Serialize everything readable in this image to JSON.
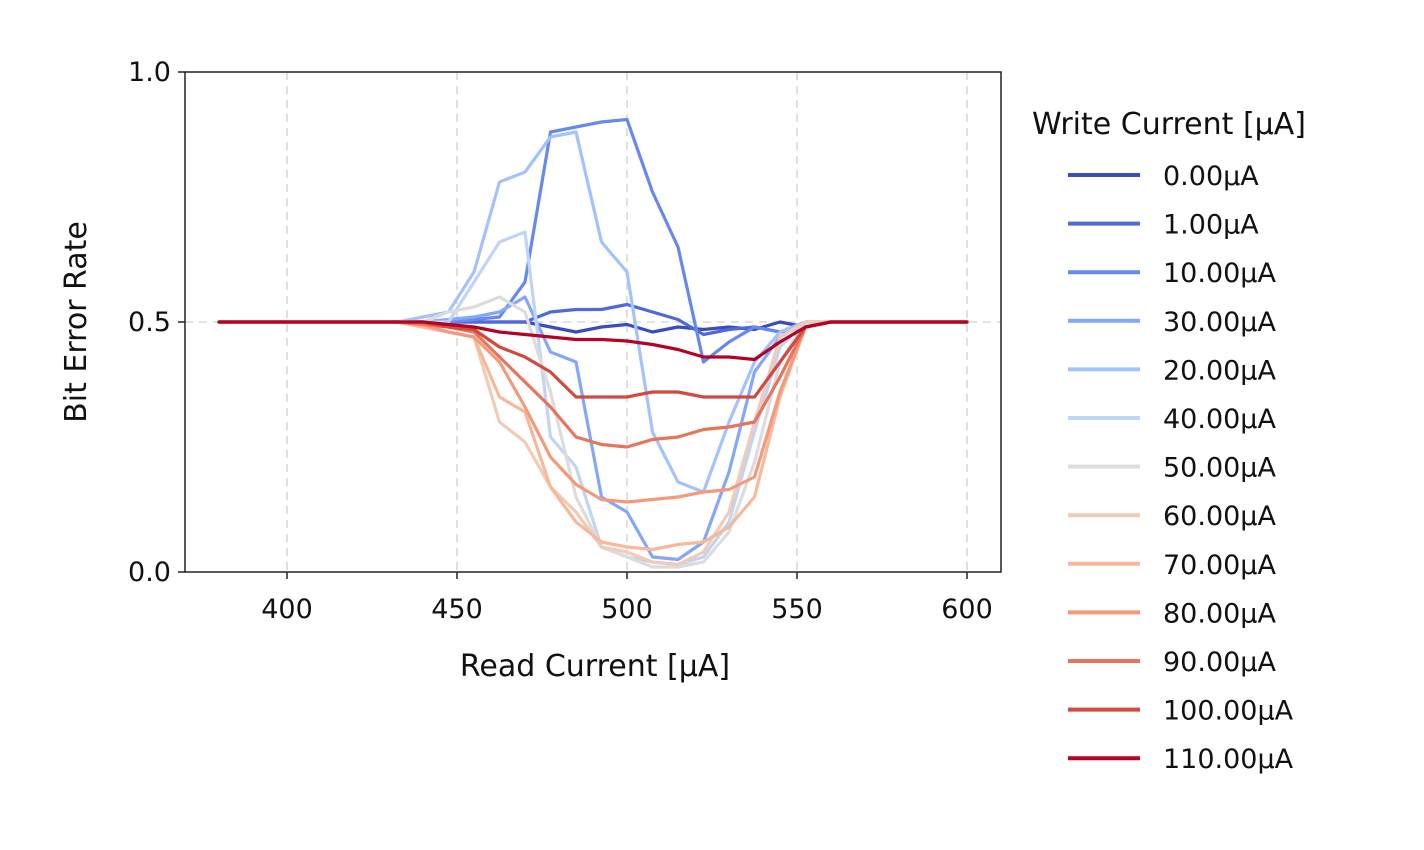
{
  "chart_data": {
    "type": "line",
    "xlabel": "Read Current [μA]",
    "ylabel": "Bit Error Rate",
    "xlim": [
      370,
      610
    ],
    "ylim": [
      0.0,
      1.0
    ],
    "xticks": [
      400,
      450,
      500,
      550,
      600
    ],
    "xtick_labels": [
      "400",
      "450",
      "500",
      "550",
      "600"
    ],
    "yticks": [
      0.0,
      0.5,
      1.0
    ],
    "ytick_labels": [
      "0.0",
      "0.5",
      "1.0"
    ],
    "grid": "dashed",
    "legend_title": "Write Current [μA]",
    "legend_position": "outside-right",
    "x": [
      380,
      387.5,
      395,
      402.5,
      410,
      417.5,
      425,
      432.5,
      440,
      447.5,
      455,
      462.5,
      470,
      477.5,
      485,
      492.5,
      500,
      507.5,
      515,
      522.5,
      530,
      537.5,
      545,
      552.5,
      560,
      567.5,
      575,
      582.5,
      590,
      597.5,
      600
    ],
    "series": [
      {
        "name": "0.00μA",
        "color": "#3b4cc0",
        "values": [
          0.5,
          0.5,
          0.5,
          0.5,
          0.5,
          0.5,
          0.5,
          0.5,
          0.5,
          0.5,
          0.5,
          0.5,
          0.5,
          0.49,
          0.48,
          0.49,
          0.495,
          0.48,
          0.49,
          0.485,
          0.49,
          0.485,
          0.5,
          0.49,
          0.5,
          0.5,
          0.5,
          0.5,
          0.5,
          0.5,
          0.5
        ]
      },
      {
        "name": "1.00μA",
        "color": "#4f69d9",
        "values": [
          0.5,
          0.5,
          0.5,
          0.5,
          0.5,
          0.5,
          0.5,
          0.5,
          0.5,
          0.5,
          0.5,
          0.5,
          0.5,
          0.52,
          0.525,
          0.525,
          0.535,
          0.52,
          0.505,
          0.475,
          0.485,
          0.49,
          0.48,
          0.49,
          0.5,
          0.5,
          0.5,
          0.5,
          0.5,
          0.5,
          0.5
        ]
      },
      {
        "name": "10.00μA",
        "color": "#6788ee",
        "values": [
          0.5,
          0.5,
          0.5,
          0.5,
          0.5,
          0.5,
          0.5,
          0.5,
          0.5,
          0.5,
          0.505,
          0.51,
          0.58,
          0.88,
          0.89,
          0.9,
          0.905,
          0.76,
          0.65,
          0.42,
          0.46,
          0.49,
          0.48,
          0.5,
          0.5,
          0.5,
          0.5,
          0.5,
          0.5,
          0.5,
          0.5
        ]
      },
      {
        "name": "30.00μA",
        "color": "#84a7fc",
        "values": [
          0.5,
          0.5,
          0.5,
          0.5,
          0.5,
          0.5,
          0.5,
          0.5,
          0.5,
          0.505,
          0.51,
          0.52,
          0.55,
          0.44,
          0.42,
          0.15,
          0.12,
          0.03,
          0.025,
          0.06,
          0.2,
          0.4,
          0.47,
          0.5,
          0.5,
          0.5,
          0.5,
          0.5,
          0.5,
          0.5,
          0.5
        ]
      },
      {
        "name": "20.00μA",
        "color": "#a3c2fe",
        "values": [
          0.5,
          0.5,
          0.5,
          0.5,
          0.5,
          0.5,
          0.5,
          0.5,
          0.51,
          0.52,
          0.6,
          0.78,
          0.8,
          0.87,
          0.88,
          0.66,
          0.6,
          0.28,
          0.18,
          0.16,
          0.3,
          0.42,
          0.48,
          0.5,
          0.5,
          0.5,
          0.5,
          0.5,
          0.5,
          0.5,
          0.5
        ]
      },
      {
        "name": "40.00μA",
        "color": "#c0d4f5",
        "values": [
          0.5,
          0.5,
          0.5,
          0.5,
          0.5,
          0.5,
          0.5,
          0.5,
          0.5,
          0.5,
          0.58,
          0.66,
          0.68,
          0.27,
          0.21,
          0.05,
          0.03,
          0.02,
          0.015,
          0.03,
          0.1,
          0.28,
          0.45,
          0.5,
          0.5,
          0.5,
          0.5,
          0.5,
          0.5,
          0.5,
          0.5
        ]
      },
      {
        "name": "50.00μA",
        "color": "#dddcdc",
        "values": [
          0.5,
          0.5,
          0.5,
          0.5,
          0.5,
          0.5,
          0.5,
          0.5,
          0.5,
          0.52,
          0.53,
          0.55,
          0.52,
          0.36,
          0.15,
          0.05,
          0.03,
          0.01,
          0.01,
          0.02,
          0.08,
          0.22,
          0.42,
          0.5,
          0.5,
          0.5,
          0.5,
          0.5,
          0.5,
          0.5,
          0.5
        ]
      },
      {
        "name": "60.00μA",
        "color": "#f2cbb7",
        "values": [
          0.5,
          0.5,
          0.5,
          0.5,
          0.5,
          0.5,
          0.5,
          0.5,
          0.49,
          0.48,
          0.47,
          0.3,
          0.26,
          0.17,
          0.12,
          0.05,
          0.04,
          0.02,
          0.015,
          0.04,
          0.12,
          0.3,
          0.47,
          0.5,
          0.5,
          0.5,
          0.5,
          0.5,
          0.5,
          0.5,
          0.5
        ]
      },
      {
        "name": "70.00μA",
        "color": "#f7b89c",
        "values": [
          0.5,
          0.5,
          0.5,
          0.5,
          0.5,
          0.5,
          0.5,
          0.5,
          0.49,
          0.48,
          0.47,
          0.35,
          0.32,
          0.17,
          0.1,
          0.06,
          0.05,
          0.045,
          0.055,
          0.06,
          0.09,
          0.15,
          0.35,
          0.49,
          0.5,
          0.5,
          0.5,
          0.5,
          0.5,
          0.5,
          0.5
        ]
      },
      {
        "name": "80.00μA",
        "color": "#f49a7b",
        "values": [
          0.5,
          0.5,
          0.5,
          0.5,
          0.5,
          0.5,
          0.5,
          0.5,
          0.495,
          0.48,
          0.47,
          0.42,
          0.33,
          0.23,
          0.175,
          0.145,
          0.14,
          0.145,
          0.15,
          0.16,
          0.165,
          0.19,
          0.36,
          0.49,
          0.5,
          0.5,
          0.5,
          0.5,
          0.5,
          0.5,
          0.5
        ]
      },
      {
        "name": "90.00μA",
        "color": "#e7745b",
        "values": [
          0.5,
          0.5,
          0.5,
          0.5,
          0.5,
          0.5,
          0.5,
          0.5,
          0.495,
          0.49,
          0.48,
          0.43,
          0.38,
          0.33,
          0.27,
          0.255,
          0.25,
          0.265,
          0.27,
          0.285,
          0.29,
          0.3,
          0.39,
          0.49,
          0.5,
          0.5,
          0.5,
          0.5,
          0.5,
          0.5,
          0.5
        ]
      },
      {
        "name": "100.00μA",
        "color": "#d1493f",
        "values": [
          0.5,
          0.5,
          0.5,
          0.5,
          0.5,
          0.5,
          0.5,
          0.5,
          0.5,
          0.49,
          0.485,
          0.45,
          0.43,
          0.4,
          0.35,
          0.35,
          0.35,
          0.36,
          0.36,
          0.35,
          0.35,
          0.35,
          0.42,
          0.49,
          0.5,
          0.5,
          0.5,
          0.5,
          0.5,
          0.5,
          0.5
        ]
      },
      {
        "name": "110.00μA",
        "color": "#b40426",
        "values": [
          0.5,
          0.5,
          0.5,
          0.5,
          0.5,
          0.5,
          0.5,
          0.5,
          0.5,
          0.495,
          0.49,
          0.48,
          0.475,
          0.47,
          0.465,
          0.465,
          0.462,
          0.455,
          0.445,
          0.43,
          0.43,
          0.425,
          0.46,
          0.49,
          0.5,
          0.5,
          0.5,
          0.5,
          0.5,
          0.5,
          0.5
        ]
      }
    ]
  }
}
